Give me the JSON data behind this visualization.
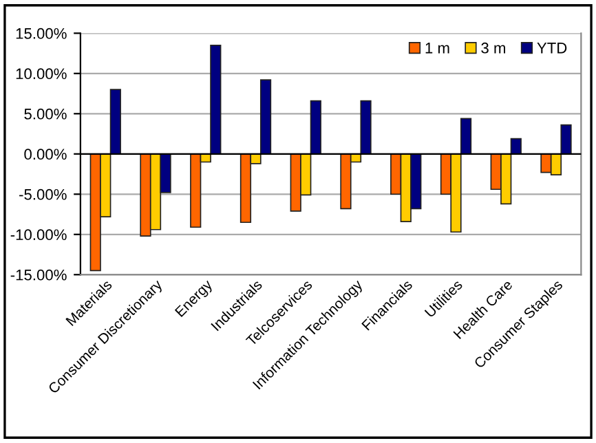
{
  "chart_data": {
    "type": "bar",
    "categories": [
      "Materials",
      "Consumer Discretionary",
      "Energy",
      "Industrials",
      "Telcoservices",
      "Information Technology",
      "Financials",
      "Utilities",
      "Health Care",
      "Consumer Staples"
    ],
    "series": [
      {
        "name": "1 m",
        "color": "#ff6600",
        "values": [
          -14.5,
          -10.2,
          -9.1,
          -8.5,
          -7.1,
          -6.8,
          -5.0,
          -5.0,
          -4.4,
          -2.3
        ]
      },
      {
        "name": "3 m",
        "color": "#ffcc00",
        "values": [
          -7.8,
          -9.4,
          -1.0,
          -1.2,
          -5.1,
          -1.0,
          -8.4,
          -9.7,
          -6.2,
          -2.6
        ]
      },
      {
        "name": "YTD",
        "color": "#000080",
        "values": [
          8.0,
          -4.8,
          13.5,
          9.2,
          6.6,
          6.6,
          -6.8,
          4.4,
          1.9,
          3.6
        ]
      }
    ],
    "ylim": [
      -15,
      15
    ],
    "yticks": [
      {
        "value": -15,
        "label": "-15.00%"
      },
      {
        "value": -10,
        "label": "-10.00%"
      },
      {
        "value": -5,
        "label": "-5.00%"
      },
      {
        "value": 0,
        "label": "0.00%"
      },
      {
        "value": 5,
        "label": "5.00%"
      },
      {
        "value": 10,
        "label": "10.00%"
      },
      {
        "value": 15,
        "label": "15.00%"
      }
    ],
    "grid": "y",
    "legend": "top right"
  }
}
